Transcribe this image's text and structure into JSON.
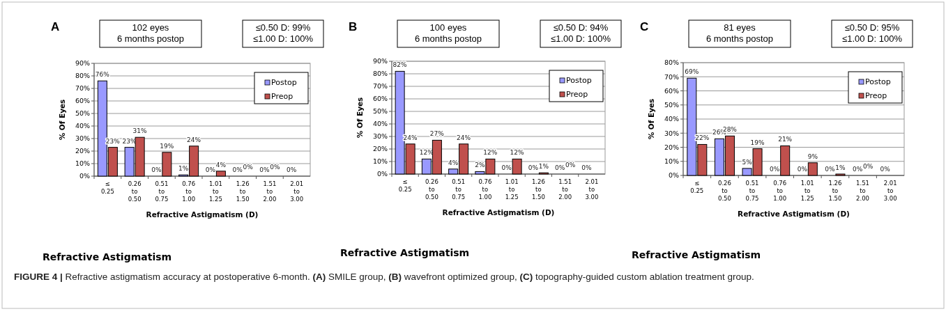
{
  "chart_data": [
    {
      "type": "bar",
      "title": "A",
      "xlabel": "Refractive Astigmatism (D)",
      "ylabel": "% Of Eyes",
      "categories": [
        "≤ 0.25",
        "0.26 to 0.50",
        "0.51 to 0.75",
        "0.76 to 1.00",
        "1.01 to 1.25",
        "1.26 to 1.50",
        "1.51 to 2.00",
        "2.01 to 3.00"
      ],
      "series": [
        {
          "name": "Postop",
          "color": "#9999ff",
          "values": [
            76,
            23,
            0,
            1,
            0,
            0,
            0,
            0
          ],
          "value_labels": [
            "76%",
            "23%",
            "0%",
            "1%",
            "0%",
            "0%",
            "0%",
            "0%"
          ]
        },
        {
          "name": "Preop",
          "color": "#c0504d",
          "values": [
            23,
            31,
            19,
            24,
            4,
            0,
            0,
            0
          ],
          "value_labels": [
            "23%",
            "31%",
            "19%",
            "24%",
            "4%",
            "0%",
            "0%",
            null
          ]
        }
      ],
      "ylim": [
        0,
        90
      ],
      "yticks": [
        {
          "value": 0,
          "label": "0%"
        },
        {
          "value": 10,
          "label": "10%"
        },
        {
          "value": 20,
          "label": "20%"
        },
        {
          "value": 30,
          "label": "30%"
        },
        {
          "value": 40,
          "label": "40%"
        },
        {
          "value": 50,
          "label": "50%"
        },
        {
          "value": 60,
          "label": "60%"
        },
        {
          "value": 70,
          "label": "70%"
        },
        {
          "value": 80,
          "label": "80%"
        },
        {
          "value": 90,
          "label": "90%"
        }
      ],
      "grid": "y",
      "legend": "top right",
      "annotations": [
        "102 eyes\n6 months postop",
        "≤0.50 D: 99%\n≤1.00 D: 100%",
        "Refractive Astigmatism",
        "FIGURE 4 | Refractive astigmatism accuracy at postoperative 6-month. (A) SMILE group, (B) wavefront optimized group, (C) topography-guided custom ablation treatment group."
      ]
    },
    {
      "type": "bar",
      "title": "B",
      "xlabel": "Refractive Astigmatism (D)",
      "ylabel": "% Of Eyes",
      "categories": [
        "≤ 0.25",
        "0.26 to 0.50",
        "0.51 to 0.75",
        "0.76 to 1.00",
        "1.01 to 1.25",
        "1.26 to 1.50",
        "1.51 to 2.00",
        "2.01 to 3.00"
      ],
      "series": [
        {
          "name": "Postop",
          "color": "#9999ff",
          "values": [
            82,
            12,
            4,
            2,
            0,
            0,
            0,
            0
          ],
          "value_labels": [
            "82%",
            "12%",
            "4%",
            "2%",
            "0%",
            "0%",
            "0%",
            "0%"
          ]
        },
        {
          "name": "Preop",
          "color": "#c0504d",
          "values": [
            24,
            27,
            24,
            12,
            12,
            1,
            0,
            0
          ],
          "value_labels": [
            "24%",
            "27%",
            "24%",
            "12%",
            "12%",
            "1%",
            "0%",
            null
          ]
        }
      ],
      "ylim": [
        0,
        90
      ],
      "yticks": [
        {
          "value": 0,
          "label": "0%"
        },
        {
          "value": 10,
          "label": "10%"
        },
        {
          "value": 20,
          "label": "20%"
        },
        {
          "value": 30,
          "label": "30%"
        },
        {
          "value": 40,
          "label": "40%"
        },
        {
          "value": 50,
          "label": "50%"
        },
        {
          "value": 60,
          "label": "60%"
        },
        {
          "value": 70,
          "label": "70%"
        },
        {
          "value": 80,
          "label": "80%"
        },
        {
          "value": 90,
          "label": "90%"
        }
      ],
      "grid": "y",
      "legend": "top right",
      "annotations": [
        "100 eyes\n6 months postop",
        "≤0.50 D: 94%\n≤1.00 D: 100%",
        "Refractive Astigmatism"
      ]
    },
    {
      "type": "bar",
      "title": "C",
      "xlabel": "Refractive Astigmatism (D)",
      "ylabel": "% Of Eyes",
      "categories": [
        "≤ 0.25",
        "0.26 to 0.50",
        "0.51 to 0.75",
        "0.76 to 1.00",
        "1.01 to 1.25",
        "1.26 to 1.50",
        "1.51 to 2.00",
        "2.01 to 3.00"
      ],
      "series": [
        {
          "name": "Postop",
          "color": "#9999ff",
          "values": [
            69,
            26,
            5,
            0,
            0,
            0,
            0,
            0
          ],
          "value_labels": [
            "69%",
            "26%",
            "5%",
            "0%",
            "0%",
            "0%",
            "0%",
            "0%"
          ]
        },
        {
          "name": "Preop",
          "color": "#c0504d",
          "values": [
            22,
            28,
            19,
            21,
            9,
            1,
            0,
            0
          ],
          "value_labels": [
            "22%",
            "28%",
            "19%",
            "21%",
            "9%",
            "1%",
            "0%",
            null
          ]
        }
      ],
      "ylim": [
        0,
        80
      ],
      "yticks": [
        {
          "value": 0,
          "label": "0%"
        },
        {
          "value": 10,
          "label": "10%"
        },
        {
          "value": 20,
          "label": "20%"
        },
        {
          "value": 30,
          "label": "30%"
        },
        {
          "value": 40,
          "label": "40%"
        },
        {
          "value": 50,
          "label": "50%"
        },
        {
          "value": 60,
          "label": "60%"
        },
        {
          "value": 70,
          "label": "70%"
        },
        {
          "value": 80,
          "label": "80%"
        }
      ],
      "grid": "y",
      "legend": "top right",
      "annotations": [
        "81 eyes\n6 months postop",
        "≤0.50 D: 95%\n≤1.00 D: 100%",
        "Refractive Astigmatism"
      ]
    }
  ]
}
